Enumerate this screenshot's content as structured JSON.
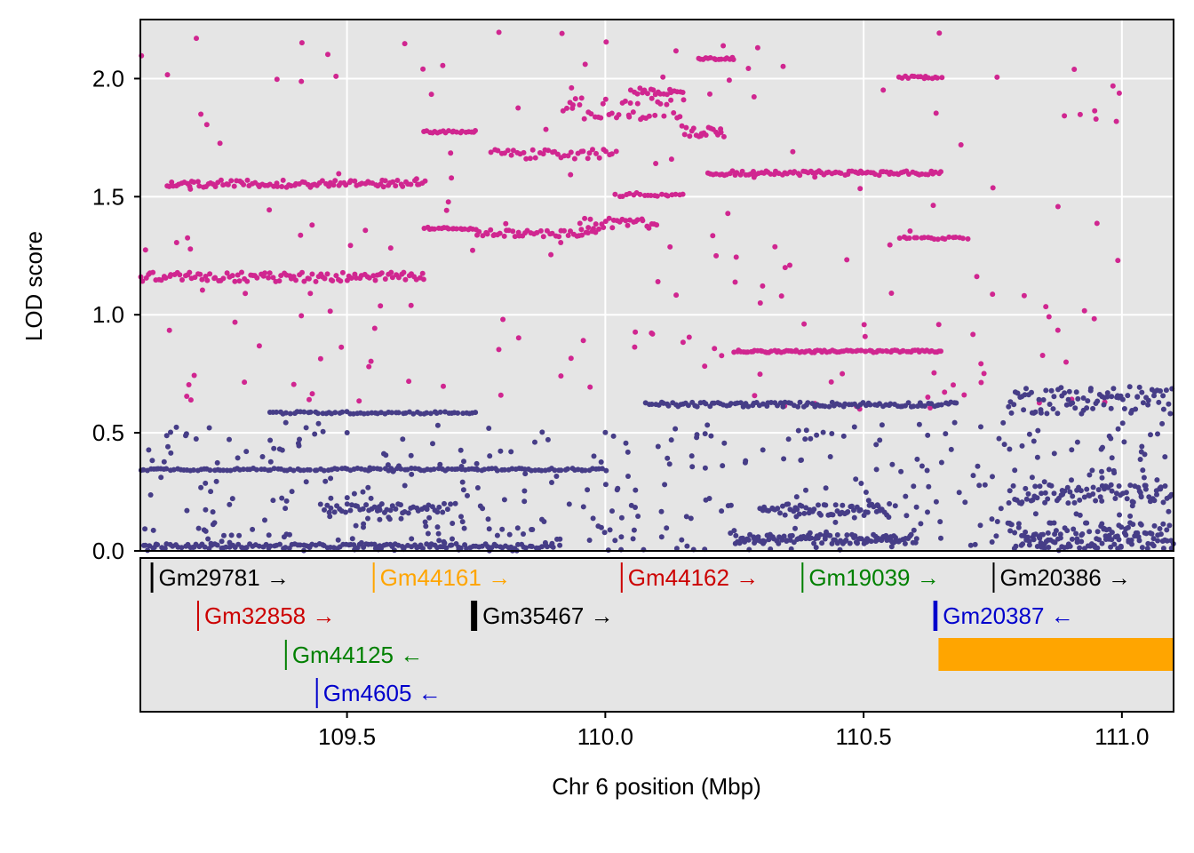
{
  "chart_data": {
    "type": "scatter",
    "xlabel": "Chr 6 position (Mbp)",
    "ylabel": "LOD score",
    "xlim": [
      109.1,
      111.1
    ],
    "ylim": [
      0,
      2.25
    ],
    "x_ticks": [
      "109.5",
      "110.0",
      "110.5",
      "111.0"
    ],
    "y_ticks": [
      "0.0",
      "0.5",
      "1.0",
      "1.5",
      "2.0"
    ],
    "grid": true,
    "series": [
      {
        "color": "#d02690",
        "clusters": [
          {
            "x0": 109.1,
            "x1": 109.65,
            "y0": 1.14,
            "y1": 1.18,
            "n": 110
          },
          {
            "x0": 109.15,
            "x1": 109.65,
            "y0": 1.54,
            "y1": 1.57,
            "n": 100
          },
          {
            "x0": 109.65,
            "x1": 109.75,
            "y0": 1.36,
            "y1": 1.37,
            "n": 20
          },
          {
            "x0": 109.65,
            "x1": 109.75,
            "y0": 1.77,
            "y1": 1.78,
            "n": 20
          },
          {
            "x0": 109.75,
            "x1": 109.98,
            "y0": 1.33,
            "y1": 1.36,
            "n": 40
          },
          {
            "x0": 109.78,
            "x1": 110.02,
            "y0": 1.66,
            "y1": 1.7,
            "n": 40
          },
          {
            "x0": 109.95,
            "x1": 110.1,
            "y0": 1.36,
            "y1": 1.41,
            "n": 30
          },
          {
            "x0": 109.92,
            "x1": 110.15,
            "y0": 1.82,
            "y1": 1.92,
            "n": 40
          },
          {
            "x0": 110.02,
            "x1": 110.15,
            "y0": 1.5,
            "y1": 1.52,
            "n": 20
          },
          {
            "x0": 110.05,
            "x1": 110.15,
            "y0": 1.93,
            "y1": 1.96,
            "n": 20
          },
          {
            "x0": 110.15,
            "x1": 110.23,
            "y0": 1.75,
            "y1": 1.8,
            "n": 20
          },
          {
            "x0": 110.18,
            "x1": 110.25,
            "y0": 2.08,
            "y1": 2.09,
            "n": 15
          },
          {
            "x0": 110.2,
            "x1": 110.65,
            "y0": 1.59,
            "y1": 1.61,
            "n": 90
          },
          {
            "x0": 110.25,
            "x1": 110.65,
            "y0": 0.84,
            "y1": 0.85,
            "n": 90
          },
          {
            "x0": 110.57,
            "x1": 110.65,
            "y0": 2.0,
            "y1": 2.01,
            "n": 15
          },
          {
            "x0": 110.57,
            "x1": 110.7,
            "y0": 1.32,
            "y1": 1.33,
            "n": 20
          },
          {
            "x0": 109.1,
            "x1": 111.0,
            "y0": 0.6,
            "y1": 2.2,
            "n": 180,
            "sparse": true
          }
        ]
      },
      {
        "color": "#463d87",
        "clusters": [
          {
            "x0": 109.1,
            "x1": 110.0,
            "y0": 0.34,
            "y1": 0.35,
            "n": 140
          },
          {
            "x0": 109.1,
            "x1": 109.9,
            "y0": 0.01,
            "y1": 0.03,
            "n": 140
          },
          {
            "x0": 109.35,
            "x1": 109.75,
            "y0": 0.58,
            "y1": 0.59,
            "n": 60
          },
          {
            "x0": 109.45,
            "x1": 109.7,
            "y0": 0.16,
            "y1": 0.2,
            "n": 50
          },
          {
            "x0": 110.08,
            "x1": 110.68,
            "y0": 0.61,
            "y1": 0.63,
            "n": 110
          },
          {
            "x0": 110.25,
            "x1": 110.6,
            "y0": 0.03,
            "y1": 0.07,
            "n": 100
          },
          {
            "x0": 110.3,
            "x1": 110.55,
            "y0": 0.15,
            "y1": 0.2,
            "n": 60
          },
          {
            "x0": 110.78,
            "x1": 111.1,
            "y0": 0.58,
            "y1": 0.7,
            "n": 90
          },
          {
            "x0": 110.78,
            "x1": 111.1,
            "y0": 0.2,
            "y1": 0.28,
            "n": 80
          },
          {
            "x0": 110.78,
            "x1": 111.1,
            "y0": 0.01,
            "y1": 0.12,
            "n": 120
          },
          {
            "x0": 109.1,
            "x1": 111.1,
            "y0": 0.0,
            "y1": 0.55,
            "n": 420,
            "sparse": true
          }
        ]
      }
    ]
  },
  "genes": [
    {
      "label": "Gm29781 →",
      "start": 109.12,
      "end": 109.125,
      "row": 0,
      "color": "#000000"
    },
    {
      "label": "Gm44161 →",
      "start": 109.55,
      "end": 109.553,
      "row": 0,
      "color": "#FFA500"
    },
    {
      "label": "Gm44162 →",
      "start": 110.03,
      "end": 110.033,
      "row": 0,
      "color": "#CC0000"
    },
    {
      "label": "Gm19039 →",
      "start": 110.38,
      "end": 110.383,
      "row": 0,
      "color": "#008000"
    },
    {
      "label": "Gm20386 →",
      "start": 110.75,
      "end": 110.753,
      "row": 0,
      "color": "#000000"
    },
    {
      "label": "Gm32858 →",
      "start": 109.21,
      "end": 109.213,
      "row": 1,
      "color": "#CC0000"
    },
    {
      "label": "Gm35467 →",
      "start": 109.74,
      "end": 109.752,
      "row": 1,
      "color": "#000000"
    },
    {
      "label": "Gm20387 ←",
      "start": 110.635,
      "end": 110.643,
      "row": 1,
      "color": "#0000CC"
    },
    {
      "label": "Gm44125 ←",
      "start": 109.38,
      "end": 109.383,
      "row": 2,
      "color": "#008000"
    },
    {
      "label": "",
      "start": 110.645,
      "end": 111.1,
      "row": 2,
      "color": "#FFA500"
    },
    {
      "label": "Gm4605 ←",
      "start": 109.44,
      "end": 109.443,
      "row": 3,
      "color": "#0000CC"
    }
  ]
}
